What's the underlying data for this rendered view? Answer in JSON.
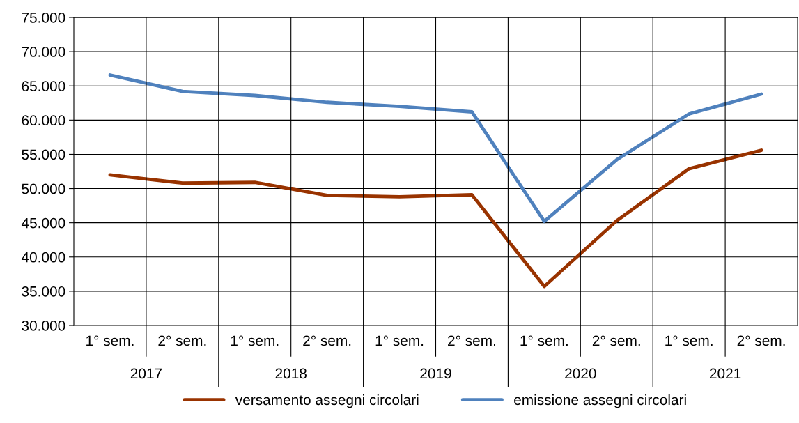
{
  "chart_data": {
    "type": "line",
    "categories": [
      "1° sem.",
      "2° sem.",
      "1° sem.",
      "2° sem.",
      "1° sem.",
      "2° sem.",
      "1° sem.",
      "2° sem.",
      "1° sem.",
      "2° sem."
    ],
    "annotations": [
      "2017",
      "2018",
      "2019",
      "2020",
      "2021"
    ],
    "series": [
      {
        "name": "versamento assegni circolari",
        "color": "#993300",
        "values": [
          52000,
          50800,
          50900,
          49000,
          48800,
          49100,
          35700,
          45300,
          52900,
          55600
        ]
      },
      {
        "name": "emissione assegni circolari",
        "color": "#4f81bd",
        "values": [
          66600,
          64200,
          63600,
          62600,
          62000,
          61200,
          45200,
          54200,
          60900,
          63800
        ]
      }
    ],
    "ylim": [
      30000,
      75000
    ],
    "yticks": [
      {
        "value": 30000,
        "label": "30.000"
      },
      {
        "value": 35000,
        "label": "35.000"
      },
      {
        "value": 40000,
        "label": "40.000"
      },
      {
        "value": 45000,
        "label": "45.000"
      },
      {
        "value": 50000,
        "label": "50.000"
      },
      {
        "value": 55000,
        "label": "55.000"
      },
      {
        "value": 60000,
        "label": "60.000"
      },
      {
        "value": 65000,
        "label": "65.000"
      },
      {
        "value": 70000,
        "label": "70.000"
      },
      {
        "value": 75000,
        "label": "75.000"
      }
    ],
    "grid": true,
    "legend": "bottom",
    "marker": "none",
    "line_style": "solid"
  }
}
